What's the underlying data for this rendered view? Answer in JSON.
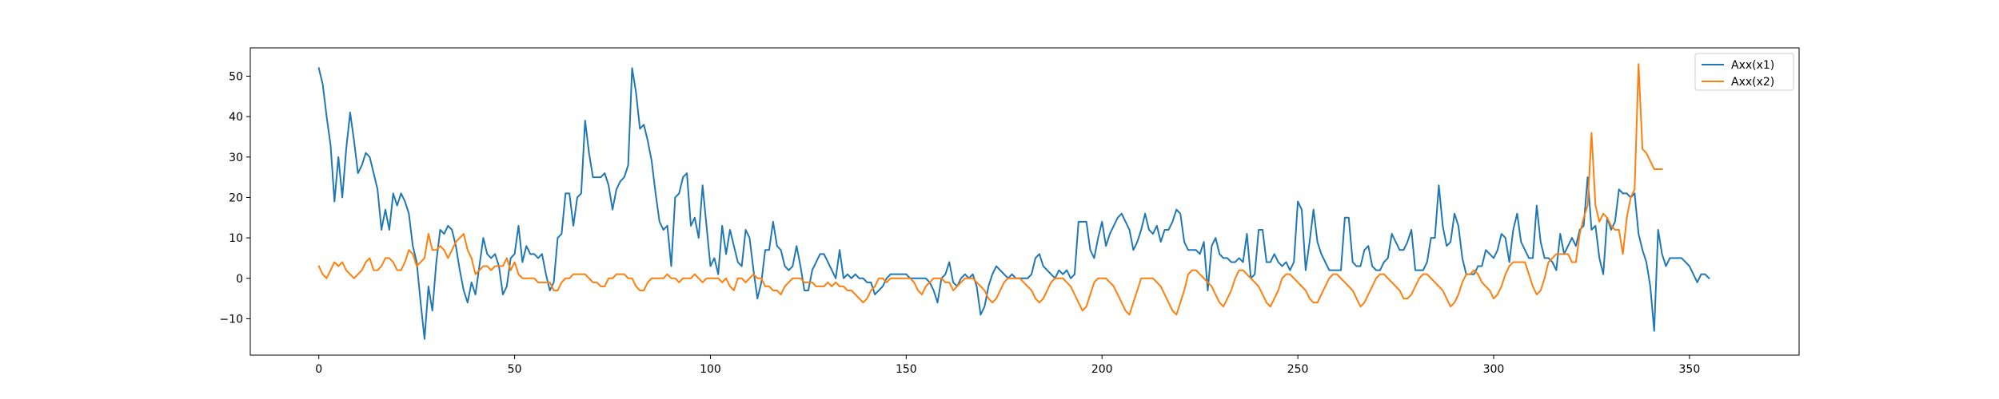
{
  "chart_data": {
    "type": "line",
    "title": "",
    "xlabel": "",
    "ylabel": "",
    "xlim": [
      -17.5,
      378
    ],
    "ylim": [
      -19,
      57
    ],
    "x_ticks": [
      0,
      50,
      100,
      150,
      200,
      250,
      300,
      350
    ],
    "y_ticks": [
      -10,
      0,
      10,
      20,
      30,
      40,
      50
    ],
    "grid": false,
    "legend_position": "top-right",
    "series": [
      {
        "name": "Axx(x1)",
        "color": "#1f77b4",
        "x_start": 0,
        "x_step": 1,
        "values": [
          52,
          48,
          40,
          33,
          19,
          30,
          20,
          32,
          41,
          34,
          26,
          28,
          31,
          30,
          26,
          22,
          12,
          17,
          12,
          21,
          18,
          21,
          19,
          16,
          8,
          4,
          -6,
          -15,
          -2,
          -8,
          4,
          12,
          11,
          13,
          12,
          8,
          2,
          -3,
          -6,
          -1,
          -4,
          3,
          10,
          6,
          5,
          6,
          3,
          -4,
          -2,
          5,
          6,
          13,
          4,
          8,
          6,
          6,
          5,
          6,
          1,
          -3,
          -1,
          10,
          11,
          21,
          21,
          13,
          20,
          21,
          39,
          31,
          25,
          25,
          25,
          26,
          23,
          17,
          22,
          24,
          25,
          28,
          52,
          46,
          37,
          38,
          34,
          29,
          21,
          14,
          12,
          13,
          3,
          20,
          21,
          25,
          26,
          13,
          15,
          10,
          23,
          13,
          3,
          5,
          1,
          13,
          6,
          12,
          8,
          4,
          3,
          12,
          10,
          2,
          -5,
          -1,
          7,
          7,
          14,
          8,
          7,
          3,
          2,
          3,
          8,
          3,
          -3,
          -3,
          2,
          4,
          6,
          6,
          4,
          2,
          0,
          7,
          0,
          1,
          0,
          1,
          0,
          0,
          -1,
          -1,
          -4,
          -3,
          -2,
          0,
          1,
          1,
          1,
          1,
          1,
          0,
          0,
          0,
          0,
          0,
          -1,
          -3,
          -6,
          0,
          1,
          4,
          -1,
          -2,
          0,
          1,
          0,
          1,
          -2,
          -9,
          -7,
          -2,
          1,
          3,
          2,
          1,
          0,
          1,
          0,
          0,
          0,
          0,
          1,
          5,
          6,
          3,
          2,
          1,
          0,
          2,
          1,
          2,
          0,
          1,
          14,
          14,
          14,
          7,
          5,
          10,
          14,
          8,
          11,
          13,
          15,
          16,
          14,
          12,
          7,
          9,
          12,
          16,
          12,
          11,
          13,
          9,
          12,
          12,
          14,
          17,
          16,
          9,
          7,
          7,
          7,
          6,
          9,
          -3,
          8,
          10,
          6,
          5,
          5,
          4,
          4,
          5,
          4,
          11,
          0,
          1,
          12,
          12,
          4,
          4,
          6,
          4,
          3,
          4,
          2,
          4,
          19,
          17,
          2,
          9,
          17,
          9,
          6,
          4,
          2,
          2,
          2,
          2,
          15,
          15,
          4,
          3,
          3,
          7,
          8,
          3,
          2,
          2,
          4,
          5,
          11,
          9,
          7,
          7,
          9,
          12,
          2,
          2,
          2,
          4,
          10,
          10,
          23,
          13,
          8,
          9,
          16,
          13,
          5,
          1,
          1,
          1,
          3,
          3,
          7,
          6,
          5,
          7,
          11,
          10,
          4,
          12,
          16,
          9,
          7,
          5,
          5,
          18,
          9,
          5,
          5,
          4,
          2,
          11,
          6,
          8,
          10,
          8,
          12,
          13,
          25,
          12,
          13,
          5,
          1,
          15,
          12,
          14,
          22,
          21,
          21,
          20,
          21,
          11,
          7,
          4,
          -2,
          -13,
          12,
          6,
          3,
          5,
          5,
          5,
          5,
          4,
          3,
          1,
          -1,
          1,
          1,
          0
        ]
      },
      {
        "name": "Axx(x2)",
        "color": "#ff7f0e",
        "x_start": 0,
        "x_step": 1,
        "values": [
          3,
          1,
          0,
          2,
          4,
          3,
          4,
          2,
          1,
          0,
          1,
          2,
          4,
          5,
          2,
          2,
          3,
          5,
          5,
          4,
          2,
          2,
          4,
          7,
          6,
          3,
          4,
          5,
          11,
          7,
          7,
          8,
          7,
          5,
          7,
          9,
          10,
          11,
          7,
          5,
          1,
          2,
          3,
          3,
          2,
          3,
          3,
          3,
          5,
          2,
          4,
          1,
          0,
          0,
          0,
          0,
          -1,
          -1,
          -1,
          -1,
          -3,
          -3,
          -1,
          0,
          0,
          1,
          1,
          1,
          1,
          0,
          -1,
          -1,
          -2,
          -2,
          0,
          0,
          1,
          1,
          1,
          0,
          0,
          -2,
          -3,
          -3,
          -1,
          0,
          0,
          0,
          0,
          1,
          0,
          0,
          -1,
          0,
          0,
          0,
          1,
          0,
          -1,
          0,
          0,
          0,
          0,
          -1,
          0,
          -2,
          -3,
          0,
          0,
          -1,
          0,
          1,
          0,
          0,
          -2,
          -2,
          -3,
          -3,
          -4,
          -2,
          -1,
          0,
          0,
          0,
          -1,
          -1,
          -1,
          -2,
          -2,
          -2,
          -1,
          -2,
          -1,
          -2,
          -2,
          -3,
          -3,
          -4,
          -5,
          -6,
          -5,
          -3,
          -2,
          0,
          0,
          -1,
          0,
          0,
          0,
          0,
          0,
          0,
          -1,
          -3,
          -4,
          -2,
          -1,
          0,
          0,
          0,
          -1,
          -1,
          -3,
          -2,
          -1,
          0,
          0,
          0,
          -1,
          -2,
          -3,
          -5,
          -6,
          -5,
          -3,
          -1,
          0,
          0,
          0,
          0,
          -1,
          -2,
          -3,
          -5,
          -6,
          -5,
          -3,
          -1,
          0,
          0,
          0,
          -1,
          -2,
          -4,
          -6,
          -8,
          -7,
          -4,
          -1,
          0,
          0,
          0,
          -1,
          -2,
          -4,
          -6,
          -8,
          -9,
          -6,
          -3,
          0,
          0,
          0,
          0,
          -1,
          -2,
          -4,
          -6,
          -8,
          -9,
          -6,
          -3,
          1,
          2,
          2,
          1,
          0,
          -1,
          -2,
          -4,
          -6,
          -7,
          -5,
          -3,
          0,
          2,
          2,
          1,
          0,
          -1,
          -2,
          -4,
          -6,
          -7,
          -5,
          -3,
          0,
          1,
          1,
          0,
          -1,
          -2,
          -3,
          -5,
          -6,
          -6,
          -4,
          -2,
          0,
          1,
          1,
          0,
          -1,
          -2,
          -3,
          -5,
          -7,
          -6,
          -4,
          -2,
          0,
          1,
          1,
          0,
          -1,
          -2,
          -3,
          -5,
          -5,
          -4,
          -2,
          0,
          1,
          1,
          0,
          -1,
          -2,
          -3,
          -5,
          -7,
          -6,
          -4,
          -1,
          1,
          1,
          2,
          1,
          -1,
          -2,
          -3,
          -5,
          -4,
          -2,
          1,
          3,
          4,
          4,
          4,
          4,
          1,
          -2,
          -4,
          -3,
          0,
          4,
          5,
          6,
          6,
          6,
          6,
          4,
          4,
          11,
          15,
          18,
          36,
          18,
          14,
          16,
          15,
          13,
          12,
          12,
          6,
          15,
          20,
          22,
          53,
          32,
          31,
          29,
          27,
          27,
          27
        ]
      }
    ]
  }
}
